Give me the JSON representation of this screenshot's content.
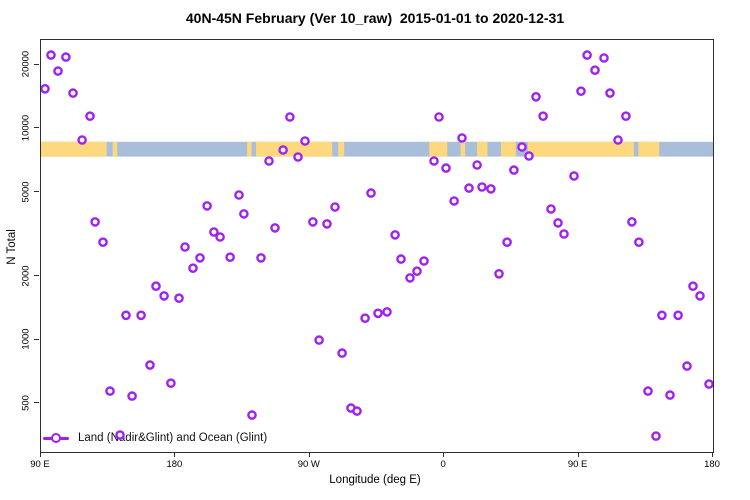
{
  "chart_data": {
    "type": "scatter",
    "title": "40N-45N February (Ver 10_raw)  2015-01-01 to 2020-12-31",
    "xlabel": "Longitude (deg E)",
    "ylabel": "N Total",
    "x_axis": {
      "span_deg": 450,
      "ticks": [
        {
          "deg": 0,
          "label": "90 E"
        },
        {
          "deg": 90,
          "label": "180"
        },
        {
          "deg": 180,
          "label": "90 W"
        },
        {
          "deg": 270,
          "label": "0"
        },
        {
          "deg": 360,
          "label": "90 E"
        },
        {
          "deg": 450,
          "label": "180"
        }
      ]
    },
    "y_axis": {
      "scale": "log10",
      "lim": [
        295,
        26400
      ],
      "ticks": [
        {
          "value": 20000,
          "label": "20000"
        },
        {
          "value": 10000,
          "label": "10000"
        },
        {
          "value": 5000,
          "label": "5000"
        },
        {
          "value": 2000,
          "label": "2000"
        },
        {
          "value": 1000,
          "label": "1000"
        },
        {
          "value": 500,
          "label": "500"
        }
      ]
    },
    "legend": {
      "label": "Land (Nadir&Glint) and Ocean (Glint)",
      "marker": "open-circle-on-line"
    },
    "colors": {
      "marker": "#A020F0",
      "land": "#FDD87E",
      "ocean": "#A9BFD9",
      "axis": "#2e2e2e"
    },
    "map_band": {
      "value_range": [
        7400,
        8700
      ],
      "base": "ocean",
      "land_segments_deg": [
        [
          0,
          44
        ],
        [
          48,
          51
        ],
        [
          138,
          141
        ],
        [
          144,
          195
        ],
        [
          199,
          203
        ],
        [
          260,
          272
        ],
        [
          281,
          284
        ],
        [
          292,
          299
        ],
        [
          308,
          318
        ],
        [
          326,
          397
        ],
        [
          400,
          414
        ]
      ]
    },
    "points": [
      [
        6.7,
        22400
      ],
      [
        16.7,
        21900
      ],
      [
        11.4,
        18800
      ],
      [
        2.7,
        15500
      ],
      [
        21.4,
        14800
      ],
      [
        32.8,
        11500
      ],
      [
        27.5,
        8870
      ],
      [
        36.2,
        3630
      ],
      [
        41.5,
        2910
      ],
      [
        111.2,
        4320
      ],
      [
        96.4,
        2760
      ],
      [
        166.7,
        11400
      ],
      [
        176.8,
        8770
      ],
      [
        162.1,
        7950
      ],
      [
        172.1,
        7370
      ],
      [
        152.7,
        7050
      ],
      [
        132.6,
        4870
      ],
      [
        135.9,
        3960
      ],
      [
        156.7,
        3400
      ],
      [
        182.1,
        3630
      ],
      [
        191.5,
        3550
      ],
      [
        196.9,
        4270
      ],
      [
        221.0,
        4970
      ],
      [
        115.8,
        3250
      ],
      [
        119.9,
        3080
      ],
      [
        331.5,
        14200
      ],
      [
        336.2,
        11500
      ],
      [
        266.5,
        11400
      ],
      [
        281.9,
        9060
      ],
      [
        322.1,
        8220
      ],
      [
        326.8,
        7450
      ],
      [
        263.2,
        7050
      ],
      [
        271.2,
        6530
      ],
      [
        292.0,
        6750
      ],
      [
        316.7,
        6390
      ],
      [
        286.6,
        5250
      ],
      [
        295.3,
        5310
      ],
      [
        301.3,
        5200
      ],
      [
        276.6,
        4560
      ],
      [
        341.5,
        4180
      ],
      [
        237.1,
        3150
      ],
      [
        312.1,
        2910
      ],
      [
        365.7,
        22400
      ],
      [
        377.0,
        21700
      ],
      [
        371.0,
        19000
      ],
      [
        361.6,
        15100
      ],
      [
        381.0,
        14800
      ],
      [
        391.7,
        11500
      ],
      [
        386.4,
        8870
      ],
      [
        356.9,
        5990
      ],
      [
        346.2,
        3590
      ],
      [
        350.2,
        3180
      ],
      [
        395.7,
        3630
      ],
      [
        400.4,
        2910
      ],
      [
        106.5,
        2450
      ],
      [
        101.8,
        2190
      ],
      [
        77.0,
        1800
      ],
      [
        82.4,
        1620
      ],
      [
        92.4,
        1580
      ],
      [
        56.9,
        1310
      ],
      [
        67.0,
        1310
      ],
      [
        73.0,
        761
      ],
      [
        87.0,
        625
      ],
      [
        46.2,
        573
      ],
      [
        61.0,
        543
      ],
      [
        52.9,
        355
      ],
      [
        126.6,
        2470
      ],
      [
        147.3,
        2450
      ],
      [
        217.0,
        1270
      ],
      [
        225.7,
        1340
      ],
      [
        186.2,
        1000
      ],
      [
        201.6,
        868
      ],
      [
        141.3,
        441
      ],
      [
        207.6,
        476
      ],
      [
        211.6,
        461
      ],
      [
        241.1,
        2420
      ],
      [
        256.5,
        2370
      ],
      [
        251.8,
        2120
      ],
      [
        247.1,
        1970
      ],
      [
        306.7,
        2060
      ],
      [
        231.7,
        1360
      ],
      [
        436.6,
        1800
      ],
      [
        441.3,
        1620
      ],
      [
        415.8,
        1310
      ],
      [
        426.6,
        1310
      ],
      [
        432.6,
        753
      ],
      [
        406.5,
        573
      ],
      [
        447.3,
        619
      ],
      [
        421.2,
        549
      ],
      [
        411.8,
        351
      ]
    ]
  }
}
